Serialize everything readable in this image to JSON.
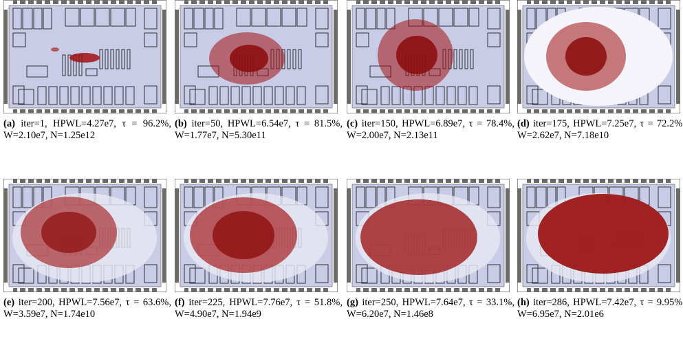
{
  "panels": [
    {
      "label": "(a)",
      "caption": "iter=1, HPWL=4.27e7, τ = 96.2%, W=2.10e7, N=1.25e12"
    },
    {
      "label": "(b)",
      "caption": "iter=50, HPWL=6.54e7, τ = 81.5%, W=1.77e7, N=5.30e11"
    },
    {
      "label": "(c)",
      "caption": "iter=150, HPWL=6.89e7, τ = 78.4%, W=2.00e7, N=2.13e11"
    },
    {
      "label": "(d)",
      "caption": "iter=175, HPWL=7.25e7, τ = 72.2%, W=2.62e7, N=7.18e10"
    },
    {
      "label": "(e)",
      "caption": "iter=200, HPWL=7.56e7, τ = 63.6%, W=3.59e7, N=1.74e10"
    },
    {
      "label": "(f)",
      "caption": "iter=225, HPWL=7.76e7, τ = 51.8%, W=4.90e7, N=1.94e9"
    },
    {
      "label": "(g)",
      "caption": "iter=250, HPWL=7.64e7, τ = 33.1%, W=6.20e7, N=1.46e8"
    },
    {
      "label": "(h)",
      "caption": "iter=286, HPWL=7.42e7, τ = 9.95%, W=6.95e7, N=2.01e6"
    }
  ]
}
